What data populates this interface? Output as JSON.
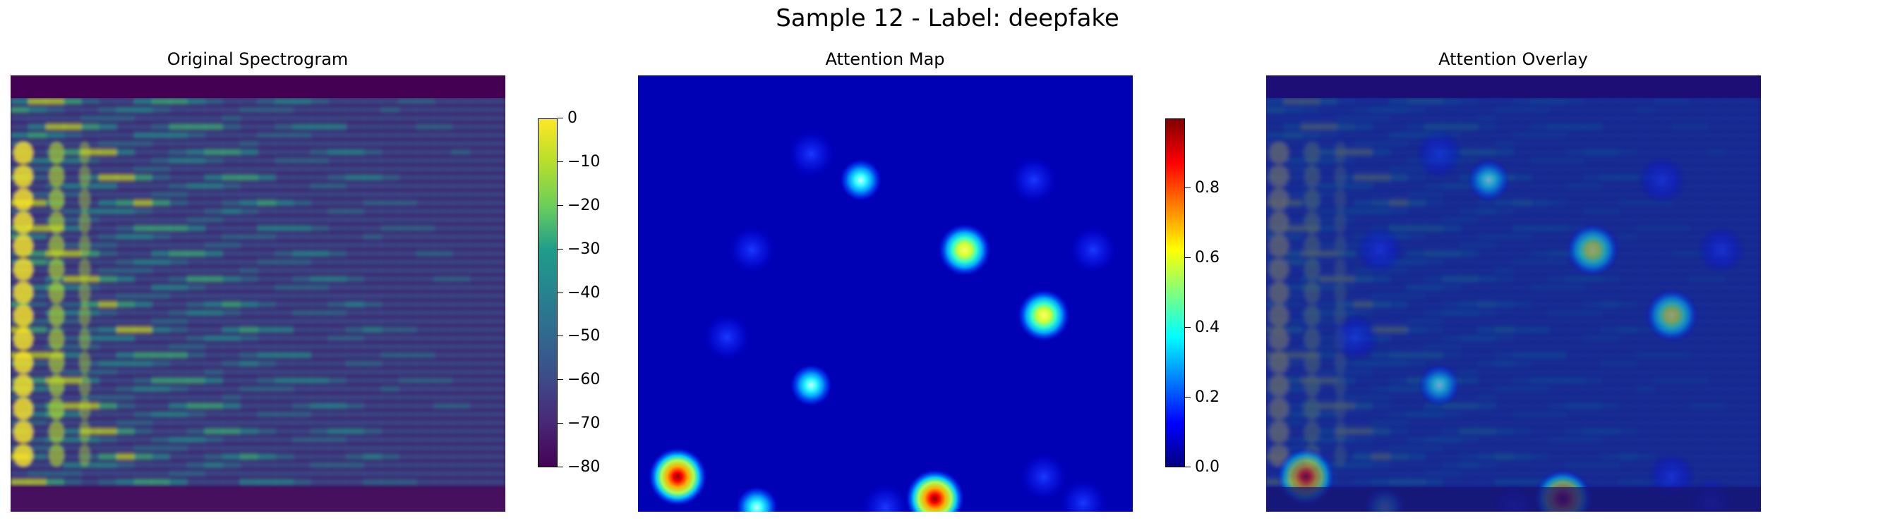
{
  "figure": {
    "title": "Sample 12 - Label: deepfake"
  },
  "panels": [
    {
      "title": "Original Spectrogram"
    },
    {
      "title": "Attention Map"
    },
    {
      "title": "Attention Overlay"
    }
  ],
  "colorbars": [
    {
      "cmap": "viridis",
      "range": [
        -80,
        0
      ],
      "ticks": [
        "0",
        "−10",
        "−20",
        "−30",
        "−40",
        "−50",
        "−60",
        "−70",
        "−80"
      ],
      "tick_values": [
        0,
        -10,
        -20,
        -30,
        -40,
        -50,
        -60,
        -70,
        -80
      ]
    },
    {
      "cmap": "jet",
      "range": [
        0,
        1.0
      ],
      "ticks": [
        "0.8",
        "0.6",
        "0.4",
        "0.2",
        "0.0"
      ],
      "tick_values": [
        0.8,
        0.6,
        0.4,
        0.2,
        0.0
      ]
    }
  ],
  "chart_data": [
    {
      "type": "heatmap",
      "title": "Original Spectrogram",
      "colormap": "viridis",
      "value_range": [
        -80,
        0
      ],
      "description": "spectrogram with horizontal harmonic bands and bright energy at left"
    },
    {
      "type": "heatmap",
      "title": "Attention Map",
      "colormap": "jet",
      "value_range": [
        0,
        1.0
      ],
      "hotspots": [
        {
          "col": 0.08,
          "row": 0.92,
          "value": 0.9
        },
        {
          "col": 0.6,
          "row": 0.97,
          "value": 0.9
        },
        {
          "col": 0.66,
          "row": 0.4,
          "value": 0.55
        },
        {
          "col": 0.82,
          "row": 0.55,
          "value": 0.45
        },
        {
          "col": 0.45,
          "row": 0.24,
          "value": 0.35
        },
        {
          "col": 0.35,
          "row": 0.71,
          "value": 0.3
        },
        {
          "col": 0.24,
          "row": 0.99,
          "value": 0.3
        },
        {
          "col": 0.23,
          "row": 0.4,
          "value": 0.15
        },
        {
          "col": 0.18,
          "row": 0.6,
          "value": 0.15
        },
        {
          "col": 0.35,
          "row": 0.18,
          "value": 0.12
        },
        {
          "col": 0.92,
          "row": 0.4,
          "value": 0.12
        },
        {
          "col": 0.8,
          "row": 0.24,
          "value": 0.1
        },
        {
          "col": 0.5,
          "row": 0.99,
          "value": 0.18
        },
        {
          "col": 0.9,
          "row": 0.98,
          "value": 0.2
        },
        {
          "col": 0.82,
          "row": 0.92,
          "value": 0.12
        }
      ]
    },
    {
      "type": "heatmap",
      "title": "Attention Overlay",
      "colormap": "jet over viridis"
    }
  ]
}
